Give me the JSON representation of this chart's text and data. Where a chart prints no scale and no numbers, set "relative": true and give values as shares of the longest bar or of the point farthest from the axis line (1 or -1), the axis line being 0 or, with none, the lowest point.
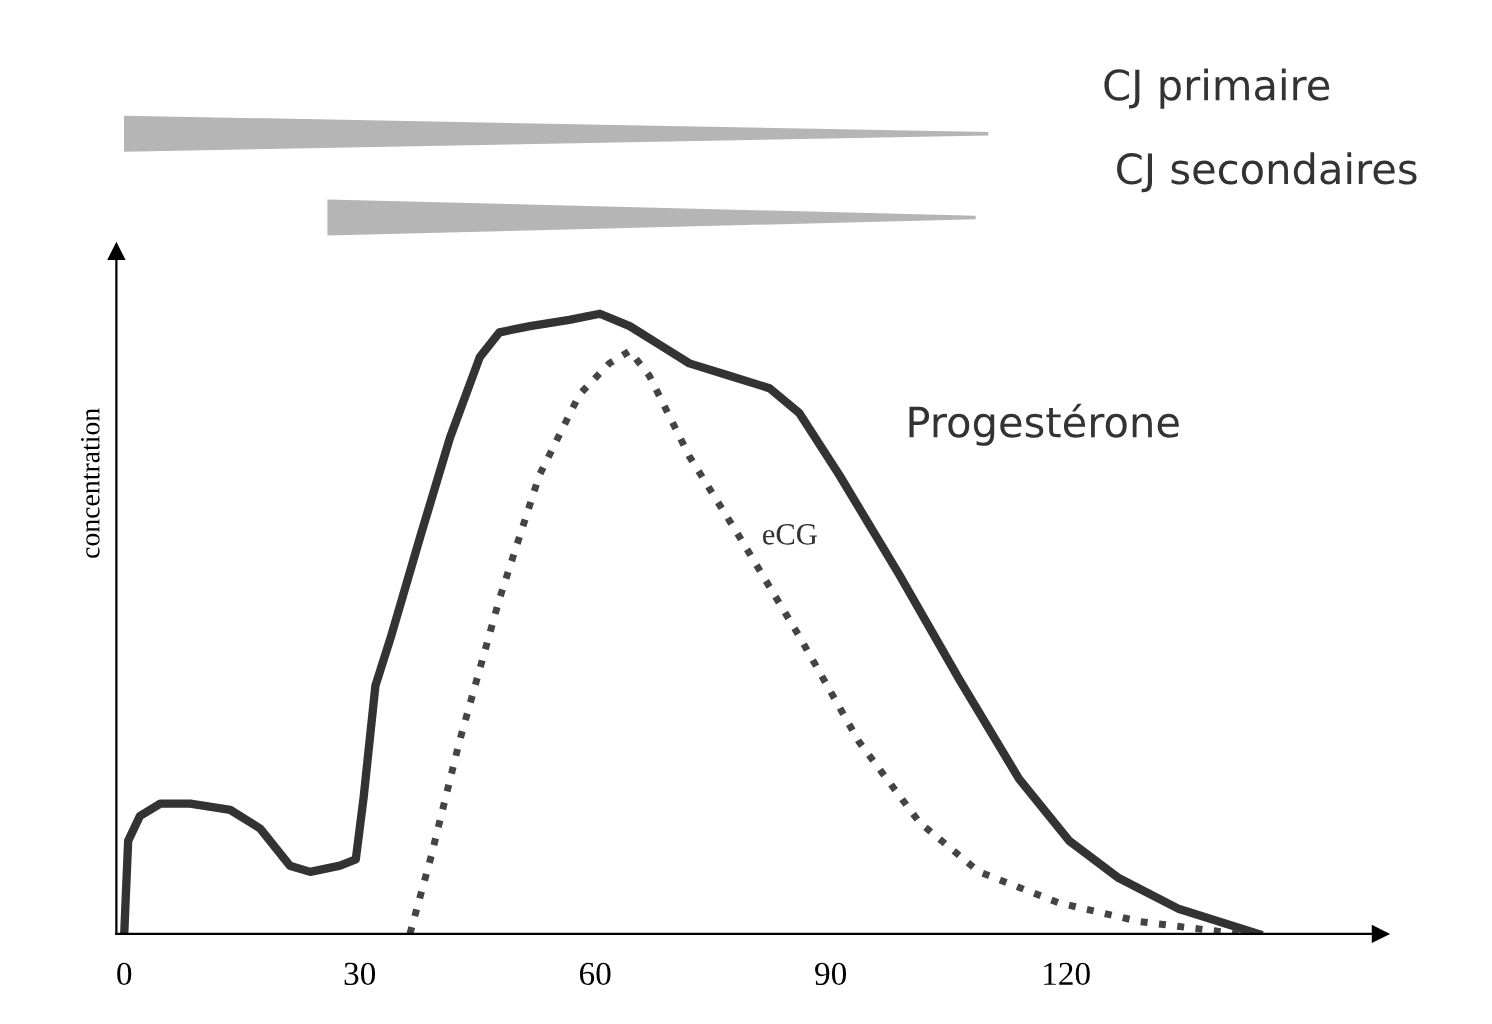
{
  "chart_data": {
    "type": "line",
    "relative": true,
    "ylabel": "concentration",
    "xlim": [
      -1,
      160
    ],
    "xticks": [
      0,
      30,
      60,
      90,
      120
    ],
    "grid": false,
    "legend": false,
    "marker": "none",
    "series": [
      {
        "name": "Progestérone",
        "color": "#333333",
        "line_style": "solid",
        "x": [
          0,
          0.5,
          2,
          4.6,
          8.4,
          13.5,
          17.3,
          21.1,
          23.7,
          27.5,
          29.5,
          30.5,
          32,
          34,
          37.7,
          41.5,
          45.3,
          47.8,
          51.7,
          56.7,
          60.6,
          64.4,
          68.2,
          72,
          77.1,
          82.2,
          86,
          91.1,
          98.7,
          106.4,
          114,
          120.4,
          126.7,
          134.4,
          144.5
        ],
        "values": [
          0,
          0.15,
          0.19,
          0.21,
          0.21,
          0.2,
          0.17,
          0.11,
          0.1,
          0.11,
          0.12,
          0.22,
          0.4,
          0.48,
          0.64,
          0.8,
          0.93,
          0.97,
          0.98,
          0.99,
          1,
          0.98,
          0.95,
          0.92,
          0.9,
          0.88,
          0.84,
          0.74,
          0.58,
          0.41,
          0.25,
          0.15,
          0.09,
          0.04,
          0
        ]
      },
      {
        "name": "eCG",
        "color": "#444444",
        "line_style": "dotted",
        "x": [
          36.4,
          39,
          42.7,
          47.8,
          52.9,
          58,
          61.8,
          64.4,
          66.9,
          72,
          78.4,
          86,
          93.6,
          101.3,
          108.9,
          119.1,
          129.3,
          142
        ],
        "values": [
          0,
          0.12,
          0.31,
          0.54,
          0.74,
          0.87,
          0.92,
          0.94,
          0.9,
          0.77,
          0.64,
          0.48,
          0.31,
          0.18,
          0.1,
          0.05,
          0.02,
          0
        ]
      }
    ],
    "annotations": [
      "CJ primaire",
      "CJ secondaires"
    ]
  }
}
